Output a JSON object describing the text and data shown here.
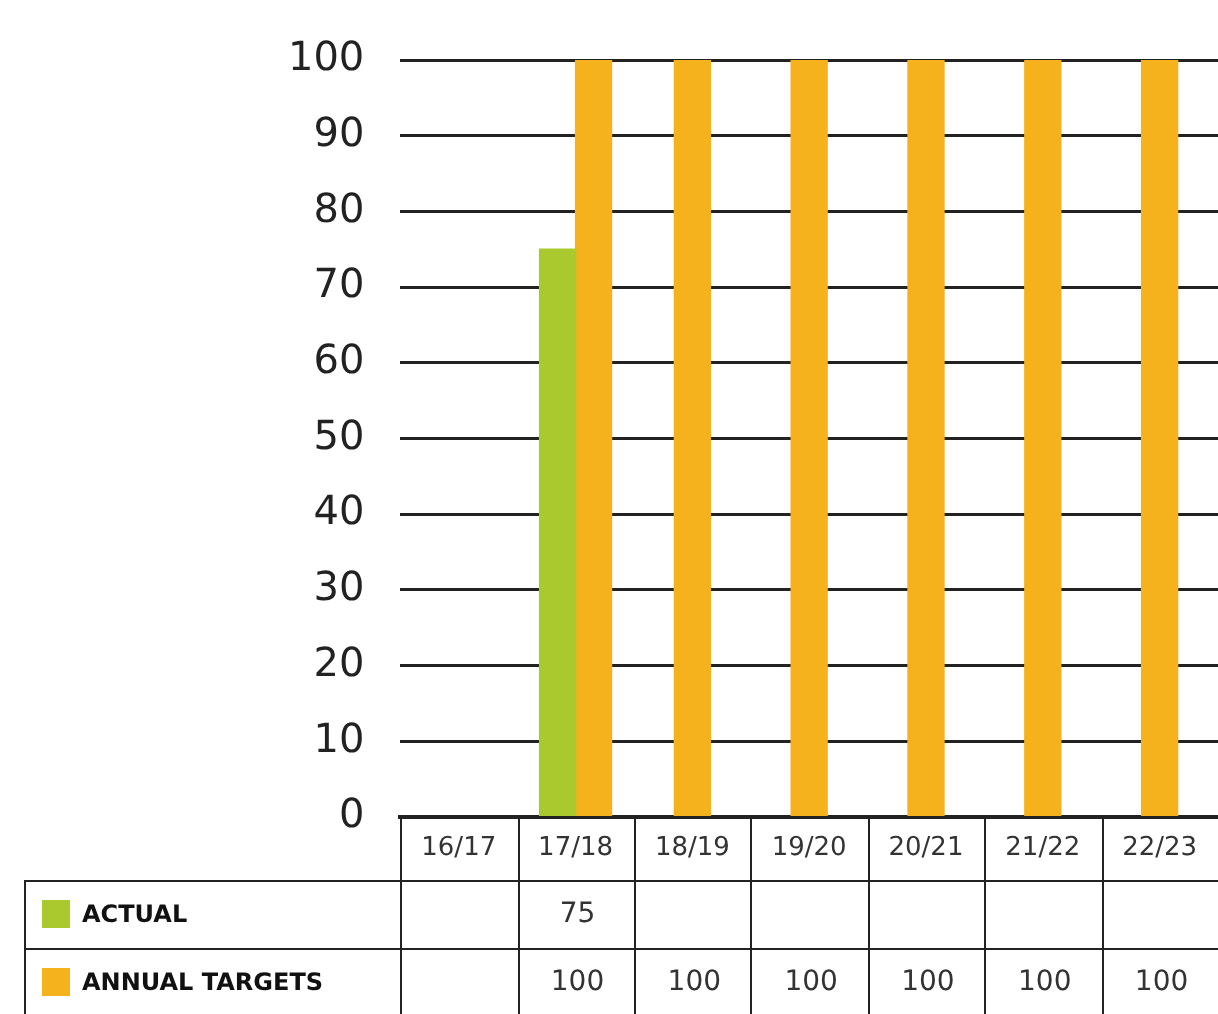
{
  "chart_data": {
    "type": "bar",
    "categories": [
      "16/17",
      "17/18",
      "18/19",
      "19/20",
      "20/21",
      "21/22",
      "22/23"
    ],
    "series": [
      {
        "name": "ACTUAL",
        "color": "#a9c92f",
        "values": [
          null,
          75,
          null,
          null,
          null,
          null,
          null
        ]
      },
      {
        "name": "ANNUAL TARGETS",
        "color": "#f5b21c",
        "values": [
          null,
          100,
          100,
          100,
          100,
          100,
          100
        ]
      }
    ],
    "ylim": [
      0,
      100
    ],
    "yticks": [
      0,
      10,
      20,
      30,
      40,
      50,
      60,
      70,
      80,
      90,
      100
    ],
    "grid": "y",
    "legend": "bottom",
    "data_labels": true
  }
}
